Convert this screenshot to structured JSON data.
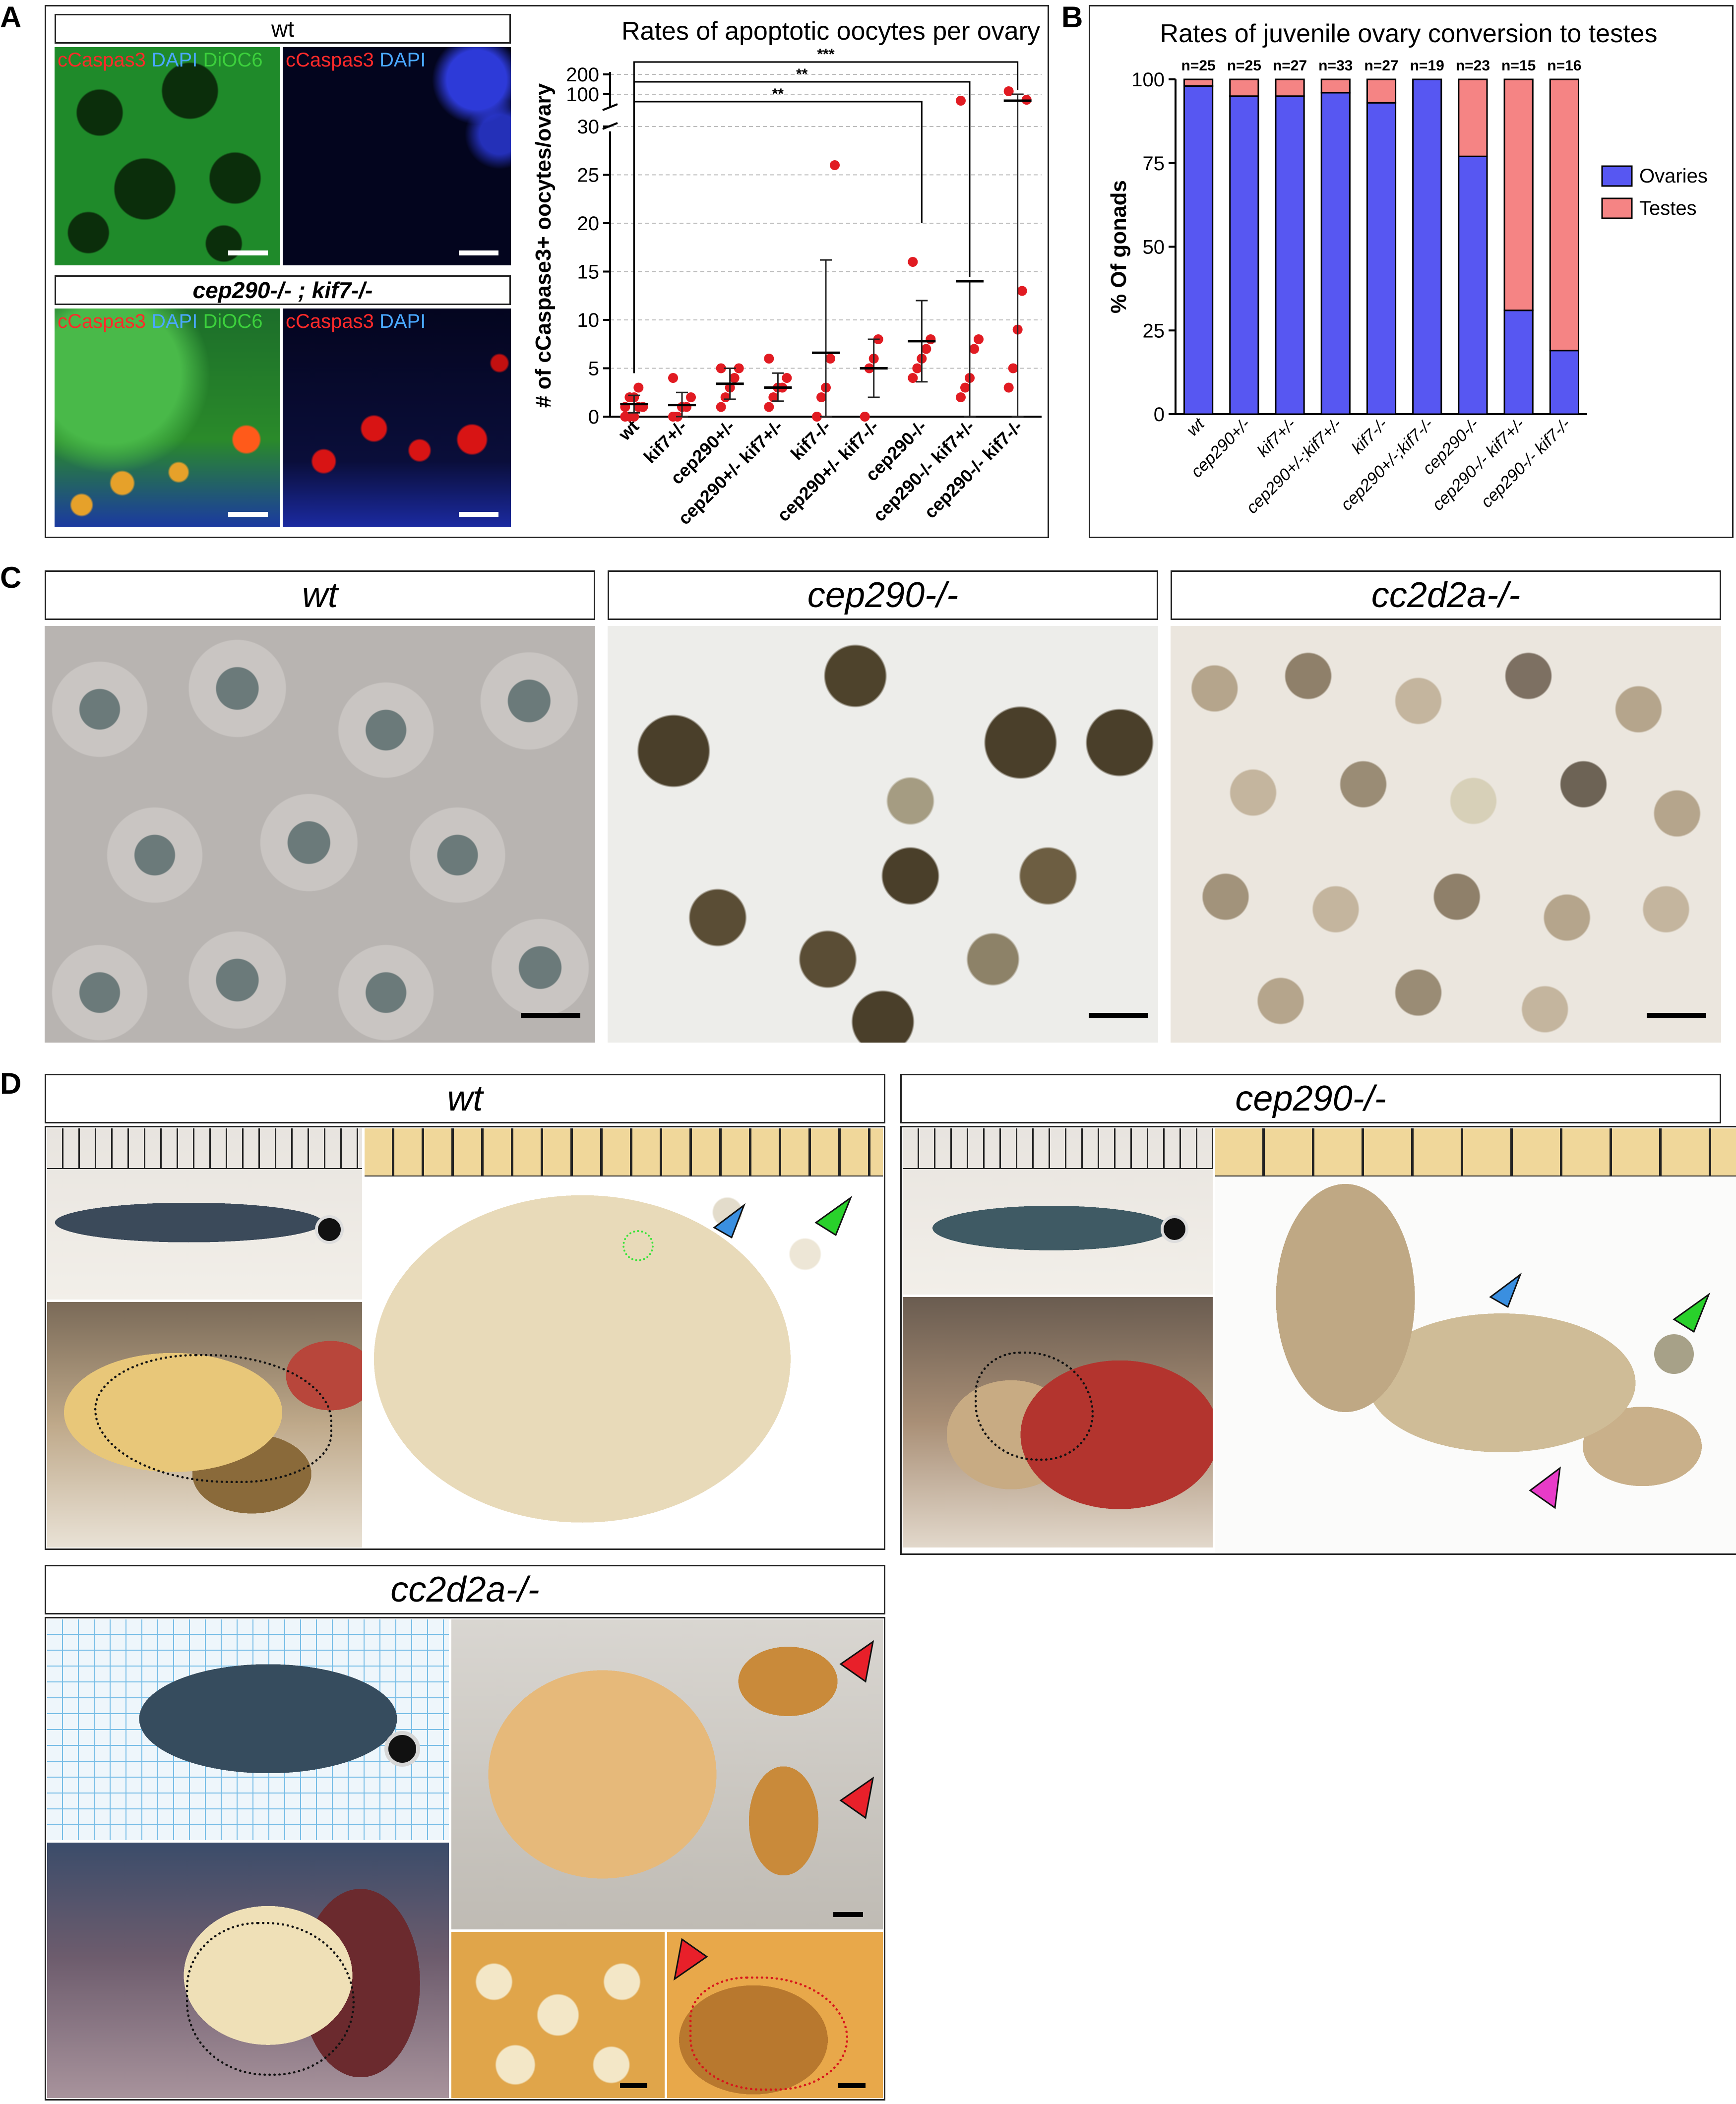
{
  "panels": {
    "A": {
      "letter": "A",
      "micro": {
        "wt_title": "wt",
        "mutant_title": "cep290-/- ; kif7-/-",
        "labels": {
          "merge": [
            {
              "text": "cCaspas3",
              "color": "#ff2a2a"
            },
            {
              "text": " DAPI",
              "color": "#4aa8ff"
            },
            {
              "text": " DiOC6",
              "color": "#3cd03c"
            }
          ],
          "single": [
            {
              "text": "cCaspas3",
              "color": "#ff2a2a"
            },
            {
              "text": " DAPI",
              "color": "#4aa8ff"
            }
          ]
        }
      },
      "chart_data": {
        "type": "scatter",
        "title": "Rates of apoptotic oocytes per ovary",
        "ylabel": "# of cCaspase3+ oocytes/ovary",
        "y_ticks_lower": [
          "0",
          "5",
          "10",
          "15",
          "20",
          "25",
          "30"
        ],
        "y_ticks_upper": [
          "100",
          "200"
        ],
        "ylim_lower": [
          0,
          30
        ],
        "categories": [
          "wt",
          "kif7+/-",
          "cep290+/-",
          "cep290+/- kif7+/-",
          "kif7-/-",
          "cep290+/- kif7-/-",
          "cep290-/-",
          "cep290-/- kif7+/-",
          "cep290-/- kif7-/-"
        ],
        "means": [
          1.3,
          1.2,
          3.4,
          3.0,
          6.6,
          5.0,
          7.8,
          14,
          86
        ],
        "sd_low": [
          0.4,
          0.0,
          1.8,
          1.6,
          0,
          2.0,
          3.6,
          0,
          0
        ],
        "sd_high": [
          2.2,
          2.5,
          5.0,
          4.5,
          16.2,
          8.0,
          12.0,
          14,
          100
        ],
        "points": [
          [
            0,
            0,
            0,
            1,
            1,
            1,
            2,
            2,
            3
          ],
          [
            0,
            0,
            1,
            1,
            2,
            4
          ],
          [
            1,
            2,
            3,
            4,
            5,
            5
          ],
          [
            1,
            2,
            3,
            3,
            4,
            6
          ],
          [
            0,
            2,
            3,
            6,
            26
          ],
          [
            0,
            5,
            6,
            8
          ],
          [
            4,
            5,
            6,
            7,
            8,
            16
          ],
          [
            2,
            3,
            4,
            7,
            8,
            86
          ],
          [
            3,
            5,
            9,
            13,
            88,
            115
          ]
        ],
        "significance": [
          {
            "from": 0,
            "to": 8,
            "label": "***"
          },
          {
            "from": 0,
            "to": 7,
            "label": "**"
          },
          {
            "from": 0,
            "to": 6,
            "label": "**"
          }
        ],
        "point_color": "#e11b22",
        "grid": "dashed horizontal"
      }
    },
    "B": {
      "letter": "B",
      "chart_data": {
        "type": "bar",
        "title": "Rates of juvenile ovary conversion to testes",
        "ylabel": "% Of gonads",
        "ylim": [
          0,
          100
        ],
        "y_ticks": [
          "0",
          "25",
          "50",
          "75",
          "100"
        ],
        "categories": [
          "wt",
          "cep290+/-",
          "kif7+/-",
          "cep290+/-;kif7+/-",
          "kif7-/-",
          "cep290+/-;kif7-/-",
          "cep290-/-",
          "cep290-/- kif7+/-",
          "cep290-/- kif7-/-"
        ],
        "n_labels": [
          "n=25",
          "n=25",
          "n=27",
          "n=33",
          "n=27",
          "n=19",
          "n=23",
          "n=15",
          "n=16"
        ],
        "series": [
          {
            "name": "Ovaries",
            "color": "#5757f2",
            "values": [
              98,
              95,
              95,
              96,
              93,
              100,
              77,
              31,
              19
            ]
          },
          {
            "name": "Testes",
            "color": "#f58484",
            "values": [
              2,
              5,
              5,
              4,
              7,
              0,
              23,
              69,
              81
            ]
          }
        ],
        "legend": "right"
      }
    },
    "C": {
      "letter": "C",
      "titles": [
        "wt",
        "cep290-/-",
        "cc2d2a-/-"
      ]
    },
    "D": {
      "letter": "D",
      "titles": [
        "wt",
        "cep290-/-",
        "cc2d2a-/-"
      ],
      "arrow_colors": {
        "blue": "#3a8fe0",
        "green": "#29d12b",
        "magenta": "#e83bc8",
        "red": "#e8202a"
      }
    }
  }
}
